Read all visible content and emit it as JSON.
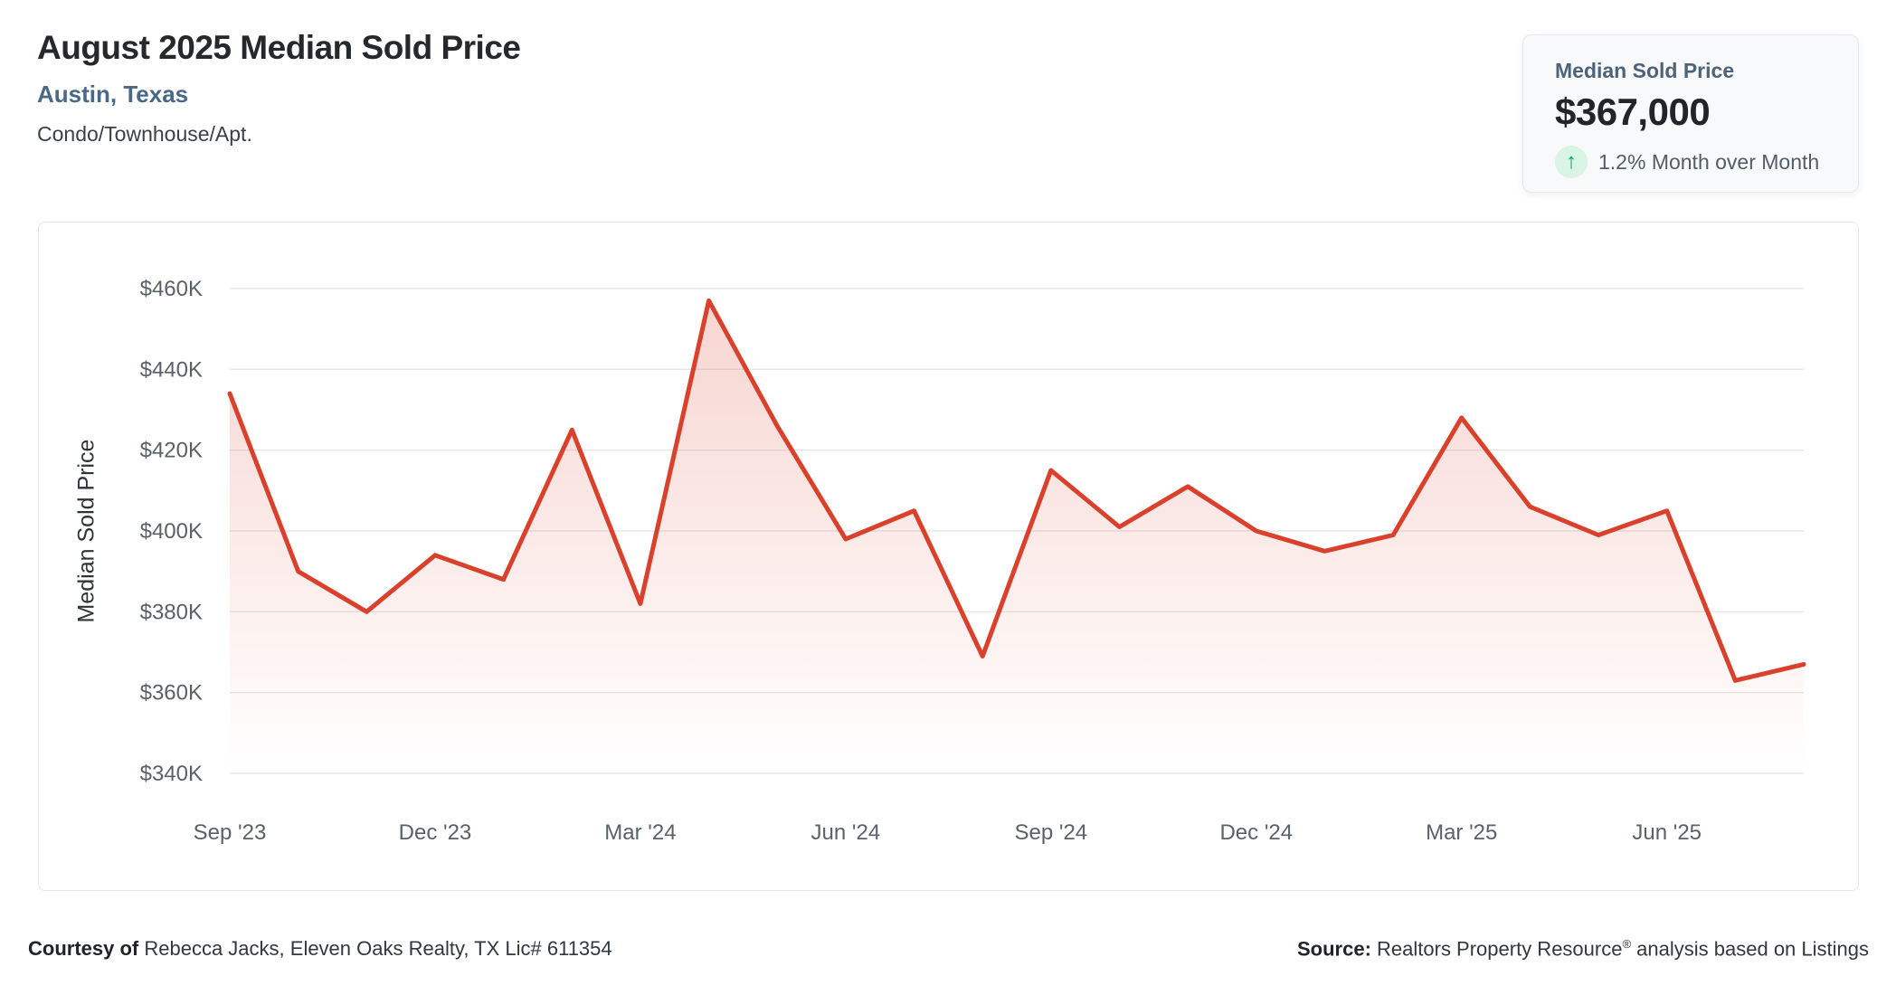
{
  "page": {
    "title": "August 2025 Median Sold Price",
    "location": "Austin, Texas",
    "property_type": "Condo/Townhouse/Apt."
  },
  "stat_card": {
    "label": "Median Sold Price",
    "value": "$367,000",
    "trend_icon": "up-arrow",
    "trend_arrow_glyph": "↑",
    "change_text": "1.2% Month over Month",
    "trend_color": "#18a05e",
    "trend_bg": "#d9f3e5"
  },
  "footer": {
    "courtesy_label": "Courtesy of",
    "courtesy_text": " Rebecca Jacks, Eleven Oaks Realty, TX Lic# 611354",
    "source_label": "Source:",
    "source_text_1": " Realtors Property Resource",
    "reg_symbol": "®",
    "source_text_2": " analysis based on Listings"
  },
  "chart_data": {
    "type": "area",
    "title": "Median Sold Price by month",
    "xlabel": "",
    "ylabel": "Median Sold Price",
    "unit": "USD thousands",
    "categories": [
      "Sep '23",
      "Oct '23",
      "Nov '23",
      "Dec '23",
      "Jan '24",
      "Feb '24",
      "Mar '24",
      "Apr '24",
      "May '24",
      "Jun '24",
      "Jul '24",
      "Aug '24",
      "Sep '24",
      "Oct '24",
      "Nov '24",
      "Dec '24",
      "Jan '25",
      "Feb '25",
      "Mar '25",
      "Apr '25",
      "May '25",
      "Jun '25",
      "Jul '25",
      "Aug '25"
    ],
    "values_thousands": [
      434,
      390,
      380,
      394,
      388,
      425,
      382,
      457,
      426,
      398,
      405,
      369,
      415,
      401,
      411,
      400,
      395,
      399,
      428,
      406,
      399,
      405,
      363,
      367
    ],
    "ylim": [
      340,
      460
    ],
    "y_ticks": [
      340,
      360,
      380,
      400,
      420,
      440,
      460
    ],
    "y_tick_prefix": "$",
    "y_tick_suffix": "K",
    "x_tick_every": 3,
    "grid": "horizontal",
    "legend": "none",
    "line_color": "#d9412c",
    "fill_top": "rgba(217,65,44,0.22)",
    "fill_bottom": "rgba(217,65,44,0)",
    "grid_color": "#e7e7e7",
    "axis_text_color": "#5c6167"
  }
}
